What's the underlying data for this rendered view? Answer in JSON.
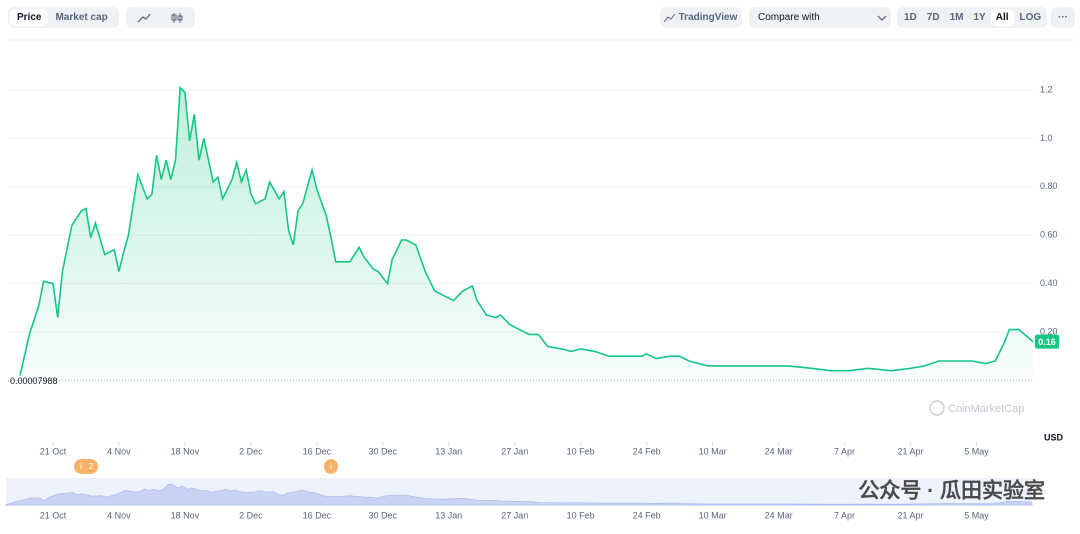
{
  "toolbar": {
    "tabs": [
      "Price",
      "Market cap"
    ],
    "tradingview": "TradingView",
    "compare": "Compare with",
    "ranges": [
      "1D",
      "7D",
      "1M",
      "1Y",
      "All"
    ],
    "log": "LOG",
    "more": "···"
  },
  "chart_data": {
    "type": "area",
    "color": "#16c784",
    "x": [
      0,
      2,
      4,
      5,
      7,
      8,
      9,
      11,
      13,
      14,
      15,
      16,
      18,
      20,
      21,
      22,
      23,
      25,
      27,
      28,
      29,
      30,
      31,
      32,
      33,
      34,
      35,
      36,
      37,
      38,
      39,
      41,
      42,
      43,
      45,
      46,
      47,
      48,
      49,
      50,
      52,
      53,
      55,
      56,
      57,
      58,
      59,
      60,
      62,
      63,
      65,
      66,
      67,
      70,
      72,
      73,
      75,
      76,
      78,
      79,
      81,
      82,
      84,
      86,
      88,
      90,
      92,
      94,
      96,
      97,
      99,
      101,
      102,
      104,
      106,
      108,
      110,
      112,
      115,
      117,
      119,
      122,
      125,
      128,
      132,
      133,
      135,
      138,
      140,
      142,
      146,
      151,
      155,
      159,
      163,
      168,
      172,
      176,
      180,
      185,
      189,
      192,
      195,
      198,
      202,
      205,
      207,
      209,
      210,
      212,
      215
    ],
    "values": [
      0.02,
      0.19,
      0.31,
      0.41,
      0.4,
      0.26,
      0.45,
      0.64,
      0.7,
      0.71,
      0.59,
      0.65,
      0.52,
      0.54,
      0.45,
      0.53,
      0.6,
      0.85,
      0.75,
      0.77,
      0.93,
      0.83,
      0.91,
      0.83,
      0.91,
      1.21,
      1.19,
      0.99,
      1.1,
      0.91,
      1.0,
      0.82,
      0.84,
      0.75,
      0.83,
      0.9,
      0.82,
      0.87,
      0.77,
      0.73,
      0.75,
      0.82,
      0.75,
      0.78,
      0.62,
      0.56,
      0.7,
      0.73,
      0.87,
      0.79,
      0.68,
      0.59,
      0.49,
      0.49,
      0.55,
      0.51,
      0.46,
      0.45,
      0.4,
      0.5,
      0.58,
      0.58,
      0.56,
      0.45,
      0.37,
      0.35,
      0.33,
      0.37,
      0.39,
      0.33,
      0.27,
      0.26,
      0.27,
      0.23,
      0.21,
      0.19,
      0.19,
      0.14,
      0.13,
      0.12,
      0.13,
      0.12,
      0.1,
      0.1,
      0.1,
      0.11,
      0.09,
      0.1,
      0.1,
      0.08,
      0.06,
      0.06,
      0.06,
      0.06,
      0.06,
      0.05,
      0.04,
      0.04,
      0.05,
      0.04,
      0.05,
      0.06,
      0.08,
      0.08,
      0.08,
      0.07,
      0.08,
      0.16,
      0.21,
      0.21,
      0.16
    ],
    "xlim": [
      0,
      215
    ],
    "xticks": [
      {
        "value": 7,
        "label": "21 Oct"
      },
      {
        "value": 21,
        "label": "4 Nov"
      },
      {
        "value": 35,
        "label": "18 Nov"
      },
      {
        "value": 49,
        "label": "2 Dec"
      },
      {
        "value": 63,
        "label": "16 Dec"
      },
      {
        "value": 77,
        "label": "30 Dec"
      },
      {
        "value": 91,
        "label": "13 Jan"
      },
      {
        "value": 105,
        "label": "27 Jan"
      },
      {
        "value": 119,
        "label": "10 Feb"
      },
      {
        "value": 133,
        "label": "24 Feb"
      },
      {
        "value": 147,
        "label": "10 Mar"
      },
      {
        "value": 161,
        "label": "24 Mar"
      },
      {
        "value": 175,
        "label": "7 Apr"
      },
      {
        "value": 189,
        "label": "21 Apr"
      },
      {
        "value": 203,
        "label": "5 May"
      }
    ],
    "ylim": [
      0,
      1.4
    ],
    "yticks": [
      {
        "value": 0.2,
        "label": "0.20"
      },
      {
        "value": 0.4,
        "label": "0.40"
      },
      {
        "value": 0.6,
        "label": "0.60"
      },
      {
        "value": 0.8,
        "label": "0.80"
      },
      {
        "value": 1,
        "label": "1.0"
      },
      1.2
    ],
    "grid": true,
    "unit": "USD",
    "baseline": 7.988e-05,
    "last_price": 0.16,
    "watermark": "CoinMarketCap",
    "events": [
      {
        "x": 14,
        "count": 2
      },
      {
        "x": 66
      }
    ]
  },
  "wechat_watermark": "公众号 · 瓜田实验室"
}
